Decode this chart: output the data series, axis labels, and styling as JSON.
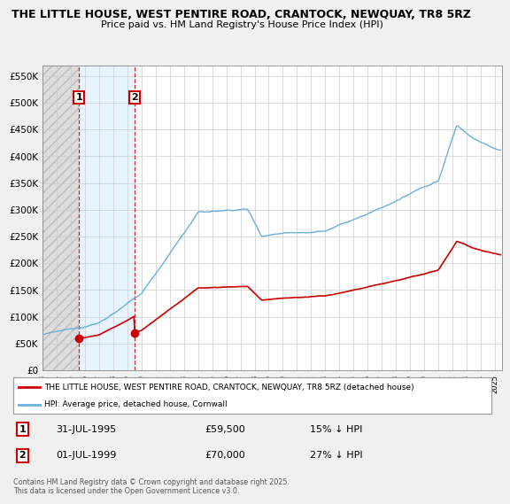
{
  "title_line1": "THE LITTLE HOUSE, WEST PENTIRE ROAD, CRANTOCK, NEWQUAY, TR8 5RZ",
  "title_line2": "Price paid vs. HM Land Registry's House Price Index (HPI)",
  "background_color": "#f0f0f0",
  "plot_background": "#ffffff",
  "hpi_color": "#6ab0d8",
  "price_color": "#cc0000",
  "annotation1_date": "31-JUL-1995",
  "annotation1_price": 59500,
  "annotation1_pct": "15% ↓ HPI",
  "annotation2_date": "01-JUL-1999",
  "annotation2_price": 70000,
  "annotation2_pct": "27% ↓ HPI",
  "legend_label1": "THE LITTLE HOUSE, WEST PENTIRE ROAD, CRANTOCK, NEWQUAY, TR8 5RZ (detached house)",
  "legend_label2": "HPI: Average price, detached house, Cornwall",
  "footer": "Contains HM Land Registry data © Crown copyright and database right 2025.\nThis data is licensed under the Open Government Licence v3.0.",
  "ylim": [
    0,
    570000
  ],
  "yticks": [
    0,
    50000,
    100000,
    150000,
    200000,
    250000,
    300000,
    350000,
    400000,
    450000,
    500000,
    550000
  ],
  "ytick_labels": [
    "£0",
    "£50K",
    "£100K",
    "£150K",
    "£200K",
    "£250K",
    "£300K",
    "£350K",
    "£400K",
    "£450K",
    "£500K",
    "£550K"
  ],
  "t1_year": 1995.583,
  "t2_year": 1999.5,
  "price_t1": 59500,
  "price_t2": 70000,
  "xmin": 1993,
  "xmax": 2025.5
}
